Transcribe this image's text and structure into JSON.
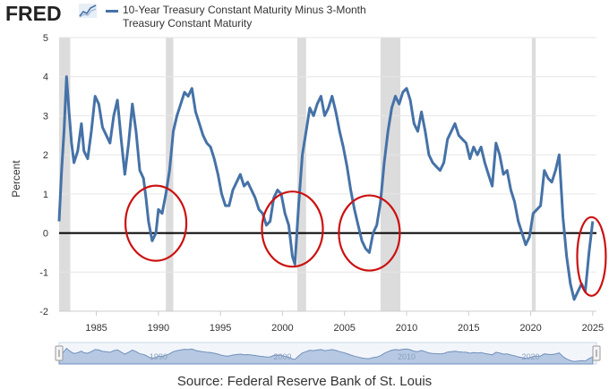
{
  "header": {
    "logo_text": "FRED",
    "logo_icon": "chart-line-icon",
    "legend_label_line1": "10-Year Treasury Constant Maturity Minus 3-Month",
    "legend_label_line2": "Treasury Constant Maturity"
  },
  "footer": {
    "source": "Source: Federal Reserve Bank of St. Louis"
  },
  "colors": {
    "series": "#4572a7",
    "recession": "#dcdcdc",
    "zero_line": "#000000",
    "annotation": "#cc1111",
    "navigator": "#b7c9e2"
  },
  "chart_data": {
    "type": "line",
    "title": "10-Year Treasury Constant Maturity Minus 3-Month Treasury Constant Maturity",
    "ylabel": "Percent",
    "xlabel": "",
    "xlim": [
      1982.0,
      2025.3
    ],
    "ylim": [
      -2,
      5
    ],
    "y_ticks": [
      -2,
      -1,
      0,
      1,
      2,
      3,
      4,
      5
    ],
    "x_ticks": [
      1985,
      1990,
      1995,
      2000,
      2005,
      2010,
      2015,
      2020,
      2025
    ],
    "navigator_ticks": [
      1990,
      2000,
      2010,
      2020
    ],
    "grid": true,
    "reference_line": 0,
    "recessions": [
      [
        1981.6,
        1982.9
      ],
      [
        1990.6,
        1991.2
      ],
      [
        2001.2,
        2001.9
      ],
      [
        2007.9,
        2009.5
      ],
      [
        2020.1,
        2020.4
      ]
    ],
    "annotations": [
      {
        "label": "inversion-1989",
        "cx": 1989.8,
        "cy": 0.25
      },
      {
        "label": "inversion-2000",
        "cx": 2000.8,
        "cy": 0.1
      },
      {
        "label": "inversion-2007",
        "cx": 2007.0,
        "cy": 0.0
      },
      {
        "label": "inversion-2024",
        "cx": 2024.9,
        "cy": -0.6
      }
    ],
    "series": [
      {
        "name": "10-Year Treasury Constant Maturity Minus 3-Month Treasury Constant Maturity",
        "x": [
          1982.0,
          1982.2,
          1982.4,
          1982.6,
          1982.8,
          1983.0,
          1983.2,
          1983.5,
          1983.8,
          1984.0,
          1984.3,
          1984.6,
          1984.9,
          1985.2,
          1985.5,
          1985.8,
          1986.1,
          1986.4,
          1986.7,
          1987.0,
          1987.3,
          1987.6,
          1987.9,
          1988.2,
          1988.5,
          1988.8,
          1989.0,
          1989.2,
          1989.5,
          1989.8,
          1990.0,
          1990.3,
          1990.6,
          1990.9,
          1991.2,
          1991.5,
          1991.8,
          1992.1,
          1992.4,
          1992.7,
          1993.0,
          1993.3,
          1993.6,
          1993.9,
          1994.2,
          1994.5,
          1994.8,
          1995.1,
          1995.4,
          1995.7,
          1996.0,
          1996.3,
          1996.6,
          1996.9,
          1997.2,
          1997.5,
          1997.8,
          1998.1,
          1998.4,
          1998.7,
          1999.0,
          1999.3,
          1999.6,
          1999.9,
          2000.2,
          2000.5,
          2000.8,
          2001.0,
          2001.3,
          2001.6,
          2001.9,
          2002.2,
          2002.5,
          2002.8,
          2003.1,
          2003.4,
          2003.7,
          2004.0,
          2004.3,
          2004.6,
          2004.9,
          2005.2,
          2005.5,
          2005.8,
          2006.1,
          2006.4,
          2006.7,
          2007.0,
          2007.3,
          2007.6,
          2007.9,
          2008.2,
          2008.5,
          2008.8,
          2009.1,
          2009.4,
          2009.7,
          2010.0,
          2010.3,
          2010.6,
          2010.9,
          2011.2,
          2011.5,
          2011.8,
          2012.1,
          2012.4,
          2012.7,
          2013.0,
          2013.3,
          2013.6,
          2013.9,
          2014.2,
          2014.5,
          2014.8,
          2015.1,
          2015.4,
          2015.7,
          2016.0,
          2016.3,
          2016.6,
          2016.9,
          2017.2,
          2017.5,
          2017.8,
          2018.1,
          2018.4,
          2018.7,
          2019.0,
          2019.3,
          2019.6,
          2019.9,
          2020.2,
          2020.5,
          2020.8,
          2021.1,
          2021.4,
          2021.7,
          2022.0,
          2022.3,
          2022.6,
          2022.9,
          2023.2,
          2023.5,
          2023.8,
          2024.1,
          2024.4,
          2024.7,
          2025.0
        ],
        "values": [
          0.3,
          1.6,
          2.6,
          4.0,
          3.1,
          2.3,
          1.8,
          2.1,
          2.8,
          2.1,
          1.9,
          2.6,
          3.5,
          3.3,
          2.7,
          2.5,
          2.3,
          3.0,
          3.4,
          2.4,
          1.5,
          2.3,
          3.3,
          2.6,
          1.6,
          1.4,
          0.9,
          0.3,
          -0.2,
          0.0,
          0.6,
          0.5,
          1.0,
          1.6,
          2.6,
          3.0,
          3.3,
          3.6,
          3.5,
          3.7,
          3.1,
          2.8,
          2.5,
          2.3,
          2.2,
          1.9,
          1.5,
          1.0,
          0.7,
          0.7,
          1.1,
          1.3,
          1.5,
          1.2,
          1.3,
          1.1,
          0.9,
          0.6,
          0.5,
          0.2,
          0.3,
          0.9,
          1.1,
          1.0,
          0.5,
          0.2,
          -0.6,
          -0.8,
          0.7,
          2.0,
          2.6,
          3.2,
          3.0,
          3.3,
          3.5,
          3.0,
          3.2,
          3.5,
          3.1,
          2.6,
          2.2,
          1.7,
          1.1,
          0.6,
          0.2,
          -0.2,
          -0.4,
          -0.5,
          0.0,
          0.2,
          0.8,
          1.8,
          2.6,
          3.2,
          3.5,
          3.3,
          3.6,
          3.7,
          3.4,
          2.8,
          2.6,
          3.1,
          2.6,
          2.0,
          1.8,
          1.7,
          1.6,
          1.8,
          2.4,
          2.6,
          2.8,
          2.5,
          2.4,
          2.3,
          1.9,
          2.2,
          2.0,
          2.2,
          1.8,
          1.5,
          1.2,
          2.3,
          2.0,
          1.5,
          1.6,
          1.1,
          0.8,
          0.3,
          0.0,
          -0.3,
          -0.1,
          0.5,
          0.6,
          0.7,
          1.6,
          1.4,
          1.3,
          1.6,
          2.0,
          0.4,
          -0.6,
          -1.3,
          -1.7,
          -1.5,
          -1.3,
          -1.5,
          -0.5,
          0.3
        ]
      }
    ]
  }
}
